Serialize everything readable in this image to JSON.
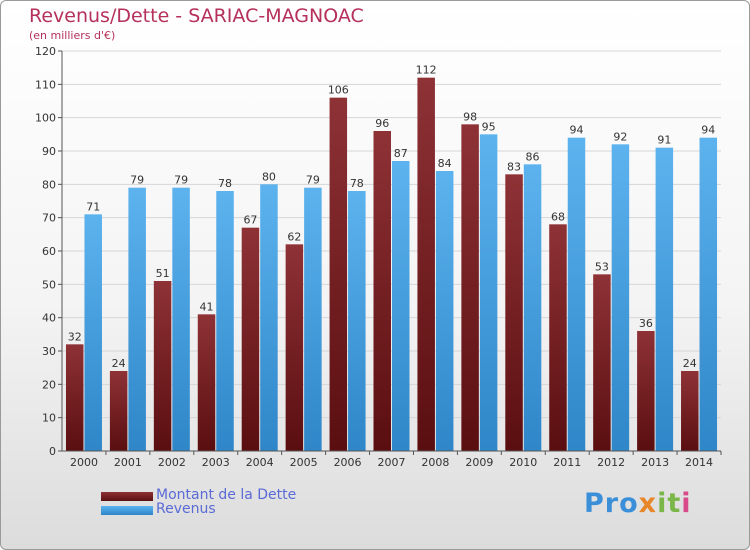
{
  "chart_data": {
    "type": "bar",
    "title": "Revenus/Dette - SARIAC-MAGNOAC",
    "subtitle": "(en milliers d'€)",
    "categories": [
      "2000",
      "2001",
      "2002",
      "2003",
      "2004",
      "2005",
      "2006",
      "2007",
      "2008",
      "2009",
      "2010",
      "2011",
      "2012",
      "2013",
      "2014"
    ],
    "series": [
      {
        "name": "Montant de la Dette",
        "color": "#7a1f22",
        "values": [
          32,
          24,
          51,
          41,
          67,
          62,
          106,
          96,
          112,
          98,
          83,
          68,
          53,
          36,
          24
        ]
      },
      {
        "name": "Revenus",
        "color": "#4aa3e0",
        "values": [
          71,
          79,
          79,
          78,
          80,
          79,
          78,
          87,
          84,
          95,
          86,
          94,
          92,
          91,
          94
        ]
      }
    ],
    "ylim": [
      0,
      120
    ],
    "yticks": [
      0,
      10,
      20,
      30,
      40,
      50,
      60,
      70,
      80,
      90,
      100,
      110,
      120
    ],
    "grid": true,
    "legend": "bottom-left"
  },
  "logo": {
    "brand": "Proxiti",
    "parts": [
      "Pro",
      "x",
      "it",
      "i"
    ]
  },
  "colors": {
    "title": "#b5305a",
    "legend_text": "#5a6ad6",
    "grid": "#d6d6d6"
  }
}
